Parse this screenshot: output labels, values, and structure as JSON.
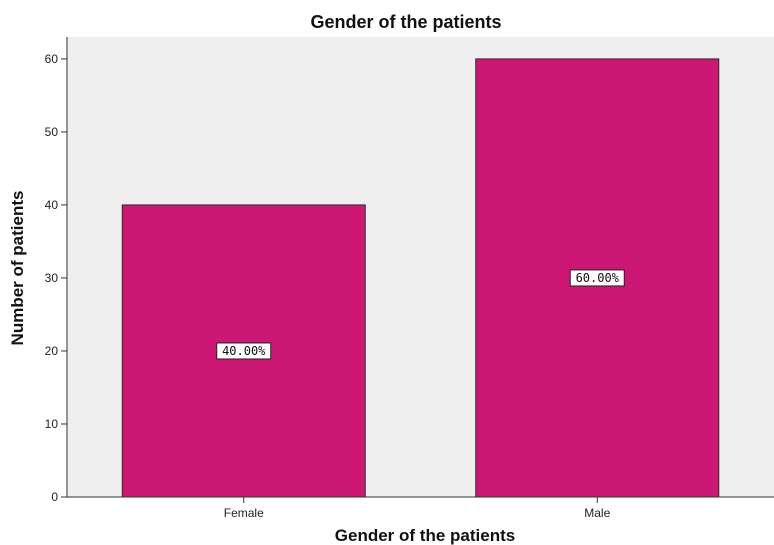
{
  "chart_data": {
    "type": "bar",
    "title": "Gender of the patients",
    "xlabel": "Gender of the patients",
    "ylabel": "Number of patients",
    "categories": [
      "Female",
      "Male"
    ],
    "values": [
      40,
      60
    ],
    "data_labels": [
      "40.00%",
      "60.00%"
    ],
    "ylim": [
      0,
      63
    ],
    "yticks": [
      "0",
      "10",
      "20",
      "30",
      "40",
      "50",
      "60"
    ],
    "grid": false,
    "legend": "none",
    "colors": {
      "bar": "#CC1775",
      "plot_background": "#EFEFEF",
      "bar_edge": "#2a2a2a"
    }
  }
}
